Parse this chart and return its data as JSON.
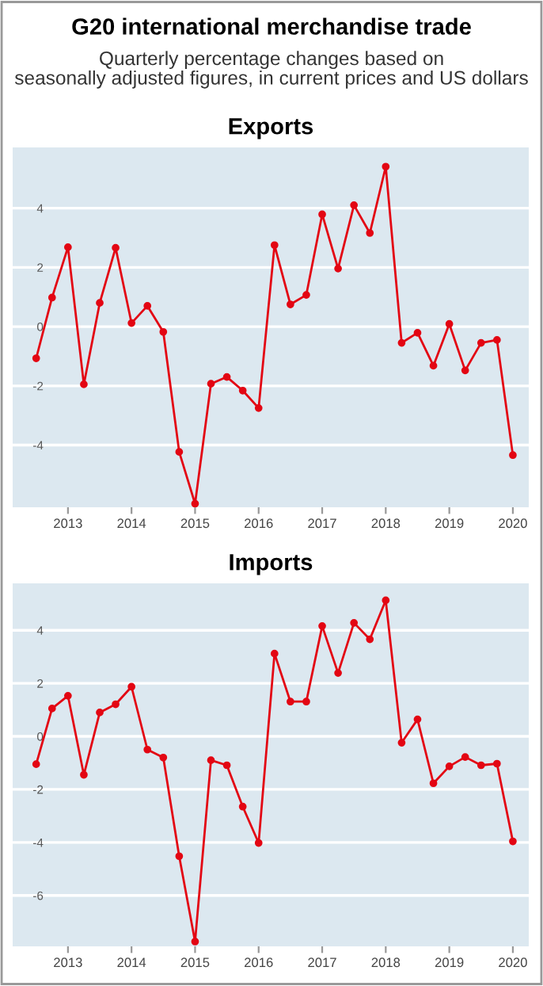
{
  "chart_data": [
    {
      "type": "line",
      "title": "Exports",
      "x": [
        2012.5,
        2012.75,
        2013,
        2013.25,
        2013.5,
        2013.75,
        2014,
        2014.25,
        2014.5,
        2014.75,
        2015,
        2015.25,
        2015.5,
        2015.75,
        2016,
        2016.25,
        2016.5,
        2016.75,
        2017,
        2017.25,
        2017.5,
        2017.75,
        2018,
        2018.25,
        2018.5,
        2018.75,
        2019,
        2019.25,
        2019.5,
        2019.75,
        2020
      ],
      "series": [
        {
          "color": "#e30613",
          "values": [
            -1.07,
            0.98,
            2.68,
            -1.95,
            0.8,
            2.66,
            0.12,
            0.7,
            -0.18,
            -4.23,
            -5.98,
            -1.93,
            -1.7,
            -2.16,
            -2.75,
            2.75,
            0.75,
            1.07,
            3.79,
            1.96,
            4.1,
            3.16,
            5.4,
            -0.55,
            -0.21,
            -1.32,
            0.09,
            -1.48,
            -0.55,
            -0.45,
            -4.34
          ]
        }
      ],
      "xlim": [
        2012.13,
        2020.25
      ],
      "xticks": [
        2013,
        2014,
        2015,
        2016,
        2017,
        2018,
        2019,
        2020
      ],
      "ylim": [
        -6.1,
        6.05
      ],
      "yticks": [
        {
          "value": -4,
          "label": "-4"
        },
        {
          "value": -2,
          "label": "-2"
        },
        0,
        2,
        4
      ],
      "grid": "y",
      "marker": "circle",
      "line_style": "solid",
      "annotations": [
        "G20 international merchandise trade",
        "Quarterly percentage changes based on\nseasonally adjusted figures, in current prices and US dollars"
      ]
    },
    {
      "type": "line",
      "title": "Imports",
      "x": [
        2012.5,
        2012.75,
        2013,
        2013.25,
        2013.5,
        2013.75,
        2014,
        2014.25,
        2014.5,
        2014.75,
        2015,
        2015.25,
        2015.5,
        2015.75,
        2016,
        2016.25,
        2016.5,
        2016.75,
        2017,
        2017.25,
        2017.5,
        2017.75,
        2018,
        2018.25,
        2018.5,
        2018.75,
        2019,
        2019.25,
        2019.5,
        2019.75,
        2020
      ],
      "series": [
        {
          "color": "#e30613",
          "values": [
            -1.05,
            1.05,
            1.53,
            -1.45,
            0.9,
            1.21,
            1.87,
            -0.5,
            -0.8,
            -4.52,
            -7.74,
            -0.9,
            -1.09,
            -2.65,
            -4.02,
            3.12,
            1.31,
            1.31,
            4.16,
            2.39,
            4.28,
            3.66,
            5.13,
            -0.24,
            0.64,
            -1.77,
            -1.13,
            -0.78,
            -1.09,
            -1.03,
            -3.96
          ]
        }
      ],
      "xlim": [
        2012.13,
        2020.25
      ],
      "xticks": [
        2013,
        2014,
        2015,
        2016,
        2017,
        2018,
        2019,
        2020
      ],
      "ylim": [
        -7.92,
        5.77
      ],
      "yticks": [
        {
          "value": -6,
          "label": "-6"
        },
        {
          "value": -4,
          "label": "-4"
        },
        {
          "value": -2,
          "label": "-2"
        },
        0,
        2,
        4
      ],
      "grid": "y",
      "marker": "circle",
      "line_style": "solid"
    }
  ]
}
